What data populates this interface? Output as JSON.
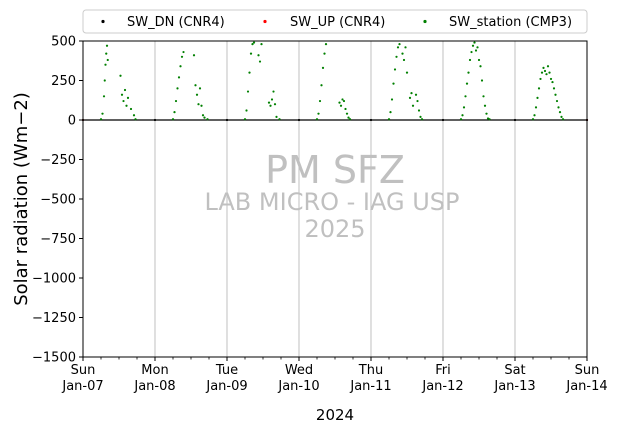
{
  "chart_data": {
    "type": "scatter",
    "title": "",
    "xlabel": "2024",
    "ylabel": "Solar radiation (Wm−2)",
    "ylim": [
      -1500,
      500
    ],
    "xlim": [
      "2024-01-07",
      "2024-01-14"
    ],
    "yticks": [
      500,
      250,
      0,
      -250,
      -500,
      -750,
      -1000,
      -1250,
      -1500
    ],
    "ytick_labels": [
      "500",
      "250",
      "0",
      "−250",
      "−500",
      "−750",
      "−1000",
      "−1250",
      "−1500"
    ],
    "xtick_dates": [
      "2024-01-07",
      "2024-01-08",
      "2024-01-09",
      "2024-01-10",
      "2024-01-11",
      "2024-01-12",
      "2024-01-13",
      "2024-01-14"
    ],
    "xtick_labels": [
      [
        "Sun",
        "Jan-07"
      ],
      [
        "Mon",
        "Jan-08"
      ],
      [
        "Tue",
        "Jan-09"
      ],
      [
        "Wed",
        "Jan-10"
      ],
      [
        "Thu",
        "Jan-11"
      ],
      [
        "Fri",
        "Jan-12"
      ],
      [
        "Sat",
        "Jan-13"
      ],
      [
        "Sun",
        "Jan-14"
      ]
    ],
    "grid": "vertical",
    "legend_position": "top",
    "watermark": [
      "PM SFZ",
      "LAB MICRO - IAG USP",
      "2025"
    ],
    "series": [
      {
        "name": "SW_DN (CNR4)",
        "color": "#000000",
        "points": [
          [
            "2024-01-07 00:00",
            0
          ],
          [
            "2024-01-08 00:00",
            0
          ],
          [
            "2024-01-09 00:00",
            0
          ],
          [
            "2024-01-10 00:00",
            0
          ],
          [
            "2024-01-11 00:00",
            0
          ],
          [
            "2024-01-12 00:00",
            0
          ],
          [
            "2024-01-13 00:00",
            0
          ],
          [
            "2024-01-14 00:00",
            0
          ]
        ]
      },
      {
        "name": "SW_UP (CNR4)",
        "color": "#ff0000",
        "points": [
          [
            "2024-01-07 00:00",
            0
          ],
          [
            "2024-01-14 00:00",
            0
          ]
        ]
      },
      {
        "name": "SW_station (CMP3)",
        "color": "#008000",
        "points": [
          [
            "2024-01-07 06:00",
            5
          ],
          [
            "2024-01-07 06:30",
            40
          ],
          [
            "2024-01-07 07:00",
            150
          ],
          [
            "2024-01-07 07:15",
            250
          ],
          [
            "2024-01-07 07:30",
            350
          ],
          [
            "2024-01-07 07:45",
            420
          ],
          [
            "2024-01-07 08:00",
            470
          ],
          [
            "2024-01-07 08:15",
            380
          ],
          [
            "2024-01-07 12:30",
            280
          ],
          [
            "2024-01-07 13:00",
            160
          ],
          [
            "2024-01-07 13:30",
            120
          ],
          [
            "2024-01-07 14:00",
            190
          ],
          [
            "2024-01-07 14:30",
            90
          ],
          [
            "2024-01-07 15:00",
            140
          ],
          [
            "2024-01-07 16:00",
            70
          ],
          [
            "2024-01-07 17:00",
            30
          ],
          [
            "2024-01-07 17:30",
            5
          ],
          [
            "2024-01-08 06:00",
            5
          ],
          [
            "2024-01-08 06:30",
            50
          ],
          [
            "2024-01-08 07:00",
            120
          ],
          [
            "2024-01-08 07:30",
            200
          ],
          [
            "2024-01-08 08:00",
            270
          ],
          [
            "2024-01-08 08:30",
            340
          ],
          [
            "2024-01-08 09:00",
            400
          ],
          [
            "2024-01-08 09:30",
            430
          ],
          [
            "2024-01-08 13:00",
            410
          ],
          [
            "2024-01-08 13:30",
            220
          ],
          [
            "2024-01-08 14:00",
            160
          ],
          [
            "2024-01-08 14:30",
            100
          ],
          [
            "2024-01-08 15:00",
            200
          ],
          [
            "2024-01-08 15:30",
            90
          ],
          [
            "2024-01-08 16:00",
            30
          ],
          [
            "2024-01-08 16:30",
            15
          ],
          [
            "2024-01-08 17:30",
            5
          ],
          [
            "2024-01-09 06:00",
            5
          ],
          [
            "2024-01-09 06:30",
            60
          ],
          [
            "2024-01-09 07:00",
            180
          ],
          [
            "2024-01-09 07:30",
            300
          ],
          [
            "2024-01-09 08:00",
            420
          ],
          [
            "2024-01-09 08:30",
            480
          ],
          [
            "2024-01-09 09:00",
            490
          ],
          [
            "2024-01-09 10:30",
            410
          ],
          [
            "2024-01-09 11:00",
            370
          ],
          [
            "2024-01-09 11:30",
            480
          ],
          [
            "2024-01-09 14:00",
            110
          ],
          [
            "2024-01-09 14:30",
            90
          ],
          [
            "2024-01-09 15:00",
            130
          ],
          [
            "2024-01-09 15:30",
            180
          ],
          [
            "2024-01-09 16:00",
            100
          ],
          [
            "2024-01-09 16:30",
            20
          ],
          [
            "2024-01-09 17:30",
            5
          ],
          [
            "2024-01-10 06:00",
            5
          ],
          [
            "2024-01-10 06:30",
            40
          ],
          [
            "2024-01-10 07:00",
            120
          ],
          [
            "2024-01-10 07:30",
            220
          ],
          [
            "2024-01-10 08:00",
            330
          ],
          [
            "2024-01-10 08:30",
            420
          ],
          [
            "2024-01-10 09:00",
            480
          ],
          [
            "2024-01-10 13:30",
            110
          ],
          [
            "2024-01-10 14:00",
            90
          ],
          [
            "2024-01-10 14:30",
            130
          ],
          [
            "2024-01-10 15:00",
            120
          ],
          [
            "2024-01-10 15:30",
            70
          ],
          [
            "2024-01-10 16:00",
            40
          ],
          [
            "2024-01-10 16:30",
            15
          ],
          [
            "2024-01-10 17:00",
            5
          ],
          [
            "2024-01-11 06:00",
            5
          ],
          [
            "2024-01-11 06:30",
            50
          ],
          [
            "2024-01-11 07:00",
            130
          ],
          [
            "2024-01-11 07:30",
            230
          ],
          [
            "2024-01-11 08:00",
            320
          ],
          [
            "2024-01-11 08:30",
            400
          ],
          [
            "2024-01-11 09:00",
            460
          ],
          [
            "2024-01-11 09:30",
            480
          ],
          [
            "2024-01-11 10:30",
            420
          ],
          [
            "2024-01-11 11:00",
            380
          ],
          [
            "2024-01-11 11:30",
            460
          ],
          [
            "2024-01-11 12:00",
            300
          ],
          [
            "2024-01-11 13:00",
            140
          ],
          [
            "2024-01-11 13:30",
            170
          ],
          [
            "2024-01-11 14:00",
            90
          ],
          [
            "2024-01-11 15:00",
            160
          ],
          [
            "2024-01-11 15:30",
            120
          ],
          [
            "2024-01-11 16:00",
            60
          ],
          [
            "2024-01-11 16:30",
            20
          ],
          [
            "2024-01-11 17:00",
            5
          ],
          [
            "2024-01-12 06:00",
            5
          ],
          [
            "2024-01-12 06:30",
            30
          ],
          [
            "2024-01-12 07:00",
            80
          ],
          [
            "2024-01-12 07:30",
            150
          ],
          [
            "2024-01-12 08:00",
            230
          ],
          [
            "2024-01-12 08:30",
            300
          ],
          [
            "2024-01-12 09:00",
            380
          ],
          [
            "2024-01-12 09:30",
            430
          ],
          [
            "2024-01-12 10:00",
            470
          ],
          [
            "2024-01-12 10:30",
            490
          ],
          [
            "2024-01-12 11:00",
            440
          ],
          [
            "2024-01-12 11:30",
            460
          ],
          [
            "2024-01-12 12:00",
            380
          ],
          [
            "2024-01-12 12:30",
            340
          ],
          [
            "2024-01-12 13:00",
            250
          ],
          [
            "2024-01-12 13:30",
            150
          ],
          [
            "2024-01-12 14:00",
            90
          ],
          [
            "2024-01-12 14:30",
            40
          ],
          [
            "2024-01-12 15:00",
            10
          ],
          [
            "2024-01-12 15:30",
            5
          ],
          [
            "2024-01-13 06:00",
            5
          ],
          [
            "2024-01-13 06:30",
            30
          ],
          [
            "2024-01-13 07:00",
            80
          ],
          [
            "2024-01-13 07:30",
            140
          ],
          [
            "2024-01-13 08:00",
            200
          ],
          [
            "2024-01-13 08:30",
            260
          ],
          [
            "2024-01-13 09:00",
            300
          ],
          [
            "2024-01-13 09:30",
            330
          ],
          [
            "2024-01-13 10:00",
            310
          ],
          [
            "2024-01-13 10:30",
            290
          ],
          [
            "2024-01-13 11:00",
            340
          ],
          [
            "2024-01-13 11:30",
            300
          ],
          [
            "2024-01-13 12:00",
            260
          ],
          [
            "2024-01-13 12:30",
            240
          ],
          [
            "2024-01-13 13:00",
            200
          ],
          [
            "2024-01-13 13:30",
            160
          ],
          [
            "2024-01-13 14:00",
            120
          ],
          [
            "2024-01-13 14:30",
            80
          ],
          [
            "2024-01-13 15:00",
            50
          ],
          [
            "2024-01-13 15:30",
            20
          ],
          [
            "2024-01-13 16:00",
            5
          ]
        ]
      }
    ]
  }
}
